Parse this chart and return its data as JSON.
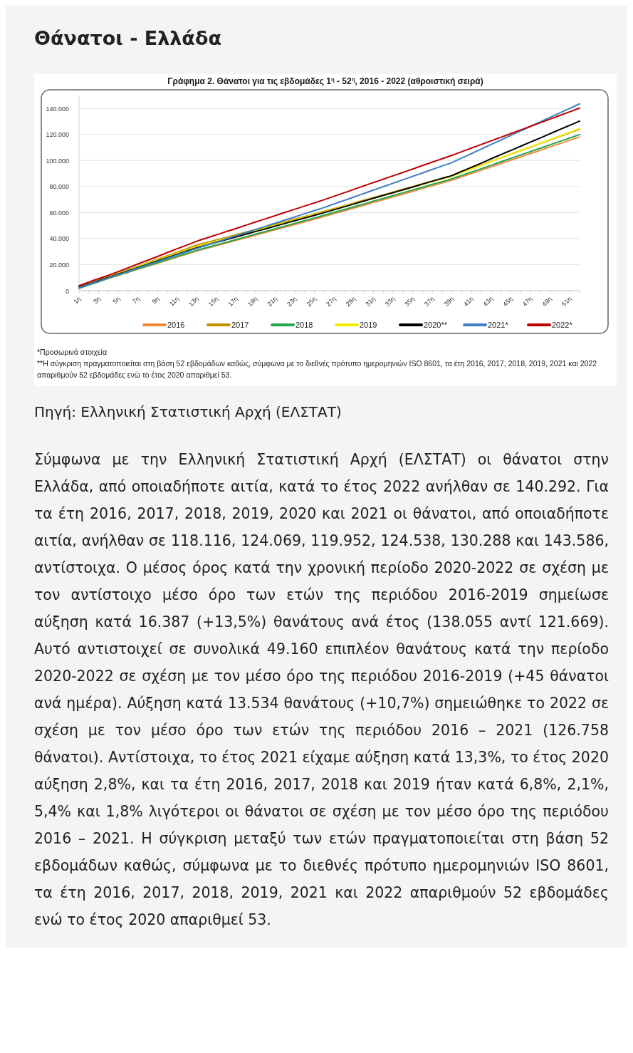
{
  "chart_data": {
    "type": "line",
    "title": "Θάνατοι - Ελλάδα",
    "subtitle": "Γράφημα 2. Θάνατοι για τις εβδομάδες 1$^{η}$ - 52$^{η}$, 2016 - 2022 (αθροιστική σειρά)",
    "categories": [
      "1η",
      null,
      "3η",
      null,
      "5η",
      null,
      "7η",
      null,
      "9η",
      null,
      "11η",
      null,
      "13η",
      null,
      "15η",
      null,
      "17η",
      null,
      "19η",
      null,
      "21η",
      null,
      "23η",
      null,
      "25η",
      null,
      "27η",
      null,
      "29η",
      null,
      "31η",
      null,
      "33η",
      null,
      "35η",
      null,
      "37η",
      null,
      "39η",
      null,
      "41η",
      null,
      "43η",
      null,
      "45η",
      null,
      "47η",
      null,
      "49η",
      null,
      "51η",
      null
    ],
    "series": [
      {
        "name": "2016",
        "color": "#f0883a",
        "values": [
          2400,
          4700,
          7100,
          9400,
          11800,
          14100,
          16500,
          18800,
          21100,
          23500,
          25800,
          28200,
          30500,
          32500,
          34600,
          36600,
          38700,
          40700,
          42700,
          44800,
          46800,
          48800,
          50900,
          52900,
          55000,
          57000,
          59200,
          61300,
          63500,
          65600,
          67800,
          69900,
          72100,
          74200,
          76400,
          78500,
          80700,
          82800,
          85000,
          87500,
          90100,
          92600,
          95200,
          97700,
          100300,
          102800,
          105400,
          107900,
          110500,
          113000,
          115600,
          118116
        ]
      },
      {
        "name": "2017",
        "color": "#bf9000",
        "values": [
          2700,
          5400,
          8100,
          10800,
          13500,
          16200,
          18800,
          21500,
          24200,
          26900,
          29600,
          32300,
          35000,
          37000,
          39000,
          41000,
          43000,
          45000,
          47000,
          49000,
          51000,
          53000,
          55000,
          57000,
          59000,
          61000,
          63100,
          65200,
          67300,
          69500,
          71600,
          73700,
          75800,
          77900,
          80000,
          82200,
          84300,
          86400,
          88500,
          91200,
          94000,
          96700,
          99400,
          102200,
          104900,
          107600,
          110400,
          113100,
          115900,
          118600,
          121300,
          124069
        ]
      },
      {
        "name": "2018",
        "color": "#22a84a",
        "values": [
          1800,
          4300,
          6800,
          9600,
          12000,
          14400,
          16800,
          19100,
          21500,
          23900,
          26300,
          28600,
          31000,
          33100,
          35200,
          37200,
          39300,
          41400,
          43500,
          45500,
          47600,
          49700,
          51800,
          53800,
          55900,
          58000,
          60200,
          62300,
          64500,
          66600,
          68800,
          70900,
          73100,
          75200,
          77400,
          79500,
          81700,
          83800,
          86000,
          88600,
          91200,
          93800,
          96400,
          99100,
          101700,
          104300,
          106900,
          109500,
          112100,
          114700,
          117300,
          119952
        ]
      },
      {
        "name": "2019",
        "color": "#f2ee00",
        "values": [
          null,
          null,
          null,
          10500,
          13100,
          15700,
          18400,
          21000,
          23600,
          26200,
          28800,
          31400,
          34000,
          36000,
          38100,
          40100,
          42200,
          44200,
          46200,
          48300,
          50300,
          52300,
          54400,
          56400,
          58500,
          60500,
          62600,
          64700,
          66800,
          69000,
          71100,
          73200,
          75300,
          77400,
          79500,
          81700,
          83800,
          85900,
          88000,
          90800,
          93600,
          96400,
          99200,
          102100,
          104900,
          107700,
          110500,
          113300,
          116100,
          118900,
          121700,
          124538
        ]
      },
      {
        "name": "2020**",
        "color": "#000000",
        "values": [
          2600,
          5100,
          7700,
          10200,
          12700,
          15300,
          17800,
          20300,
          22900,
          25400,
          27900,
          30500,
          33000,
          35100,
          37200,
          39200,
          41300,
          43400,
          45500,
          47500,
          49600,
          51700,
          53800,
          55800,
          57900,
          60000,
          62200,
          64400,
          66600,
          68800,
          71000,
          73200,
          75300,
          77500,
          79700,
          81900,
          84100,
          86300,
          88500,
          91700,
          94900,
          98100,
          101400,
          104600,
          107800,
          111000,
          114200,
          117400,
          120600,
          123900,
          127100,
          130288
        ]
      },
      {
        "name": "2021*",
        "color": "#3f7fc4",
        "values": [
          2300,
          4800,
          7300,
          9900,
          12400,
          14900,
          17400,
          19900,
          22400,
          24900,
          27500,
          30000,
          32500,
          34900,
          37300,
          39800,
          42200,
          44600,
          47000,
          49500,
          51900,
          54300,
          56700,
          59200,
          61600,
          64000,
          66700,
          69300,
          72000,
          74600,
          77300,
          79900,
          82600,
          85200,
          87900,
          90500,
          93200,
          95800,
          98500,
          102000,
          105400,
          108900,
          112400,
          115800,
          119300,
          122800,
          126200,
          129700,
          133200,
          136700,
          140100,
          143586
        ]
      },
      {
        "name": "2022*",
        "color": "#c00000",
        "values": [
          3800,
          6600,
          9300,
          11800,
          14700,
          17600,
          20500,
          23400,
          26300,
          29300,
          32200,
          35100,
          38000,
          40500,
          42900,
          45400,
          47800,
          50300,
          52800,
          55200,
          57700,
          60200,
          62600,
          65100,
          67500,
          70000,
          72600,
          75200,
          77800,
          80500,
          83100,
          85700,
          88300,
          90900,
          93500,
          96200,
          98800,
          101400,
          104000,
          106800,
          109600,
          112400,
          115200,
          117900,
          120700,
          123500,
          126300,
          129100,
          131900,
          134700,
          137500,
          140292
        ]
      }
    ],
    "ylim": [
      0,
      150000
    ],
    "yticks": [
      0,
      {
        "value": 20000,
        "label": "20.000"
      },
      {
        "value": 40000,
        "label": "40.000"
      },
      {
        "value": 60000,
        "label": "60.000"
      },
      {
        "value": 80000,
        "label": "80.000"
      },
      {
        "value": 100000,
        "label": "100.000"
      },
      {
        "value": 120000,
        "label": "120.000"
      },
      {
        "value": 140000,
        "label": "140.000"
      }
    ],
    "grid": "y",
    "legend": "bottom",
    "annotations": [
      "*Προσωρινά στοιχεία",
      "**Η σύγκριση πραγματοποιείται στη βάση 52 εβδομάδων καθώς, σύμφωνα με το διεθνές πρότυπο ημερομηνιών ISO 8601, τα έτη 2016, 2017, 2018, 2019, 2021 και 2022 απαριθμούν 52 εβδομάδες ενώ το έτος 2020 απαριθμεί 53.",
      "Πηγή: Ελληνική Στατιστική Αρχή (ΕΛΣΤΑΤ)",
      "Σύμφωνα με την Ελληνική Στατιστική Αρχή (ΕΛΣΤΑΤ) οι θάνατοι στην Ελλάδα, από οποιαδήποτε αιτία, κατά το έτος 2022 ανήλθαν σε 140.292. Για τα έτη 2016, 2017, 2018, 2019, 2020 και 2021 οι θάνατοι, από οποιαδήποτε αιτία, ανήλθαν σε 118.116, 124.069, 119.952, 124.538, 130.288 και 143.586, αντίστοιχα. Ο μέσος όρος κατά την χρονική περίοδο 2020-2022 σε σχέση με τον αντίστοιχο μέσο όρο των ετών της περιόδου 2016-2019 σημείωσε αύξηση κατά 16.387 (+13,5%) θανάτους ανά έτος (138.055 αντί 121.669). Αυτό αντιστοιχεί σε συνολικά 49.160 επιπλέον θανάτους κατά την περίοδο 2020-2022 σε σχέση με τον μέσο όρο της περιόδου 2016-2019 (+45 θάνατοι ανά ημέρα). Αύξηση κατά 13.534 θανάτους (+10,7%) σημειώθηκε το 2022 σε σχέση με τον μέσο όρο των ετών της περιόδου 2016 – 2021 (126.758 θάνατοι). Αντίστοιχα, το έτος 2021 είχαμε αύξηση κατά 13,3%, το έτος 2020 αύξηση 2,8%, και τα έτη 2016, 2017, 2018 και 2019 ήταν κατά 6,8%, 2,1%, 5,4% και 1,8% λιγότεροι οι θάνατοι σε σχέση με τον μέσο όρο της περιόδου 2016 – 2021. Η σύγκριση μεταξύ των ετών πραγματοποιείται στη βάση 52 εβδομάδων καθώς, σύμφωνα με το διεθνές πρότυπο ημερομηνιών ISO 8601, τα έτη 2016, 2017, 2018, 2019, 2021 και 2022 απαριθμούν 52 εβδομάδες ενώ το έτος 2020 απαριθμεί 53."
    ]
  }
}
